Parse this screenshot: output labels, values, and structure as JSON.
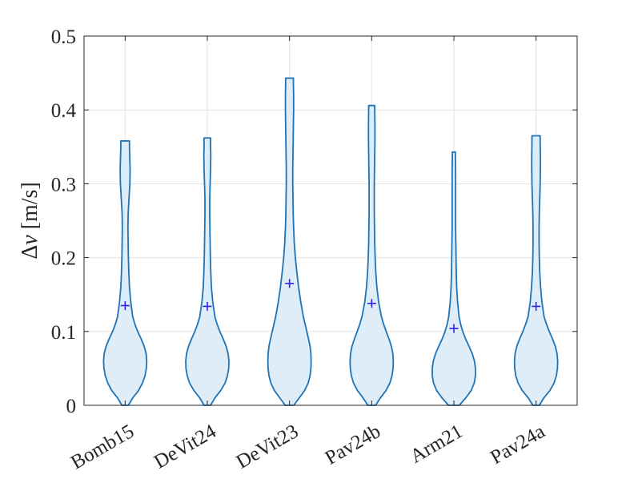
{
  "chart_data": {
    "type": "violin",
    "ylabel_symbol": "Δ",
    "ylabel_var": "v",
    "ylabel_unit": " [m/s]",
    "ylim": [
      0,
      0.5
    ],
    "yticks": [
      "0",
      "0.1",
      "0.2",
      "0.3",
      "0.4",
      "0.5"
    ],
    "ytick_values": [
      0,
      0.1,
      0.2,
      0.3,
      0.4,
      0.5
    ],
    "grid": true,
    "categories": [
      "Bomb15",
      "DeVit24",
      "DeVit23",
      "Pav24b",
      "Arm21",
      "Pav24a"
    ],
    "violins": [
      {
        "name": "Bomb15",
        "mean": 0.135,
        "max": 0.358,
        "profile": [
          [
            0,
            0.15
          ],
          [
            0.01,
            0.35
          ],
          [
            0.02,
            0.62
          ],
          [
            0.03,
            0.8
          ],
          [
            0.04,
            0.92
          ],
          [
            0.05,
            0.98
          ],
          [
            0.06,
            1.0
          ],
          [
            0.07,
            0.97
          ],
          [
            0.08,
            0.88
          ],
          [
            0.09,
            0.74
          ],
          [
            0.1,
            0.58
          ],
          [
            0.11,
            0.45
          ],
          [
            0.12,
            0.35
          ],
          [
            0.14,
            0.26
          ],
          [
            0.16,
            0.2
          ],
          [
            0.18,
            0.17
          ],
          [
            0.2,
            0.15
          ],
          [
            0.22,
            0.14
          ],
          [
            0.24,
            0.13
          ],
          [
            0.26,
            0.14
          ],
          [
            0.28,
            0.18
          ],
          [
            0.3,
            0.22
          ],
          [
            0.32,
            0.23
          ],
          [
            0.34,
            0.21
          ],
          [
            0.35,
            0.2
          ],
          [
            0.358,
            0.2
          ]
        ]
      },
      {
        "name": "DeVit24",
        "mean": 0.134,
        "max": 0.362,
        "profile": [
          [
            0,
            0.15
          ],
          [
            0.01,
            0.35
          ],
          [
            0.02,
            0.62
          ],
          [
            0.03,
            0.82
          ],
          [
            0.04,
            0.93
          ],
          [
            0.05,
            0.99
          ],
          [
            0.06,
            1.0
          ],
          [
            0.07,
            0.96
          ],
          [
            0.08,
            0.87
          ],
          [
            0.09,
            0.73
          ],
          [
            0.1,
            0.58
          ],
          [
            0.11,
            0.45
          ],
          [
            0.12,
            0.35
          ],
          [
            0.14,
            0.25
          ],
          [
            0.16,
            0.19
          ],
          [
            0.18,
            0.16
          ],
          [
            0.2,
            0.14
          ],
          [
            0.22,
            0.13
          ],
          [
            0.24,
            0.12
          ],
          [
            0.26,
            0.11
          ],
          [
            0.28,
            0.11
          ],
          [
            0.3,
            0.13
          ],
          [
            0.32,
            0.15
          ],
          [
            0.34,
            0.16
          ],
          [
            0.35,
            0.15
          ],
          [
            0.362,
            0.15
          ]
        ]
      },
      {
        "name": "DeVit23",
        "mean": 0.165,
        "max": 0.443,
        "profile": [
          [
            0,
            0.2
          ],
          [
            0.01,
            0.45
          ],
          [
            0.02,
            0.7
          ],
          [
            0.03,
            0.86
          ],
          [
            0.04,
            0.95
          ],
          [
            0.05,
            0.99
          ],
          [
            0.06,
            1.0
          ],
          [
            0.07,
            0.99
          ],
          [
            0.08,
            0.95
          ],
          [
            0.09,
            0.88
          ],
          [
            0.1,
            0.8
          ],
          [
            0.11,
            0.72
          ],
          [
            0.12,
            0.64
          ],
          [
            0.14,
            0.52
          ],
          [
            0.16,
            0.42
          ],
          [
            0.18,
            0.34
          ],
          [
            0.2,
            0.27
          ],
          [
            0.22,
            0.22
          ],
          [
            0.24,
            0.19
          ],
          [
            0.26,
            0.17
          ],
          [
            0.28,
            0.16
          ],
          [
            0.3,
            0.15
          ],
          [
            0.32,
            0.15
          ],
          [
            0.34,
            0.16
          ],
          [
            0.36,
            0.17
          ],
          [
            0.38,
            0.18
          ],
          [
            0.4,
            0.19
          ],
          [
            0.42,
            0.19
          ],
          [
            0.435,
            0.18
          ],
          [
            0.443,
            0.18
          ]
        ]
      },
      {
        "name": "Pav24b",
        "mean": 0.138,
        "max": 0.406,
        "profile": [
          [
            0,
            0.18
          ],
          [
            0.01,
            0.4
          ],
          [
            0.02,
            0.66
          ],
          [
            0.03,
            0.84
          ],
          [
            0.04,
            0.94
          ],
          [
            0.05,
            0.99
          ],
          [
            0.06,
            1.0
          ],
          [
            0.07,
            0.98
          ],
          [
            0.08,
            0.91
          ],
          [
            0.09,
            0.8
          ],
          [
            0.1,
            0.67
          ],
          [
            0.11,
            0.55
          ],
          [
            0.12,
            0.45
          ],
          [
            0.14,
            0.32
          ],
          [
            0.16,
            0.24
          ],
          [
            0.18,
            0.19
          ],
          [
            0.2,
            0.16
          ],
          [
            0.22,
            0.14
          ],
          [
            0.24,
            0.13
          ],
          [
            0.26,
            0.12
          ],
          [
            0.28,
            0.12
          ],
          [
            0.3,
            0.12
          ],
          [
            0.32,
            0.13
          ],
          [
            0.34,
            0.14
          ],
          [
            0.36,
            0.15
          ],
          [
            0.38,
            0.15
          ],
          [
            0.4,
            0.14
          ],
          [
            0.406,
            0.14
          ]
        ]
      },
      {
        "name": "Arm21",
        "mean": 0.104,
        "max": 0.343,
        "profile": [
          [
            0,
            0.25
          ],
          [
            0.01,
            0.55
          ],
          [
            0.02,
            0.8
          ],
          [
            0.03,
            0.94
          ],
          [
            0.04,
            1.0
          ],
          [
            0.05,
            1.0
          ],
          [
            0.06,
            0.95
          ],
          [
            0.07,
            0.85
          ],
          [
            0.08,
            0.7
          ],
          [
            0.09,
            0.54
          ],
          [
            0.1,
            0.41
          ],
          [
            0.11,
            0.31
          ],
          [
            0.12,
            0.24
          ],
          [
            0.14,
            0.17
          ],
          [
            0.16,
            0.13
          ],
          [
            0.18,
            0.11
          ],
          [
            0.2,
            0.1
          ],
          [
            0.22,
            0.09
          ],
          [
            0.24,
            0.08
          ],
          [
            0.26,
            0.08
          ],
          [
            0.28,
            0.08
          ],
          [
            0.3,
            0.08
          ],
          [
            0.32,
            0.08
          ],
          [
            0.335,
            0.07
          ],
          [
            0.343,
            0.07
          ]
        ]
      },
      {
        "name": "Pav24a",
        "mean": 0.134,
        "max": 0.365,
        "profile": [
          [
            0,
            0.15
          ],
          [
            0.01,
            0.36
          ],
          [
            0.02,
            0.64
          ],
          [
            0.03,
            0.83
          ],
          [
            0.04,
            0.94
          ],
          [
            0.05,
            0.99
          ],
          [
            0.06,
            1.0
          ],
          [
            0.07,
            0.97
          ],
          [
            0.08,
            0.89
          ],
          [
            0.09,
            0.76
          ],
          [
            0.1,
            0.61
          ],
          [
            0.11,
            0.48
          ],
          [
            0.12,
            0.37
          ],
          [
            0.14,
            0.27
          ],
          [
            0.16,
            0.21
          ],
          [
            0.18,
            0.17
          ],
          [
            0.2,
            0.15
          ],
          [
            0.22,
            0.14
          ],
          [
            0.24,
            0.14
          ],
          [
            0.26,
            0.15
          ],
          [
            0.28,
            0.17
          ],
          [
            0.3,
            0.19
          ],
          [
            0.32,
            0.2
          ],
          [
            0.34,
            0.2
          ],
          [
            0.355,
            0.19
          ],
          [
            0.365,
            0.19
          ]
        ]
      }
    ],
    "colors": {
      "fill": "#deedf7",
      "stroke": "#1f73b7",
      "mean_marker": "#2b22e6",
      "grid": "#e3e3e3",
      "axis": "#262626"
    }
  }
}
